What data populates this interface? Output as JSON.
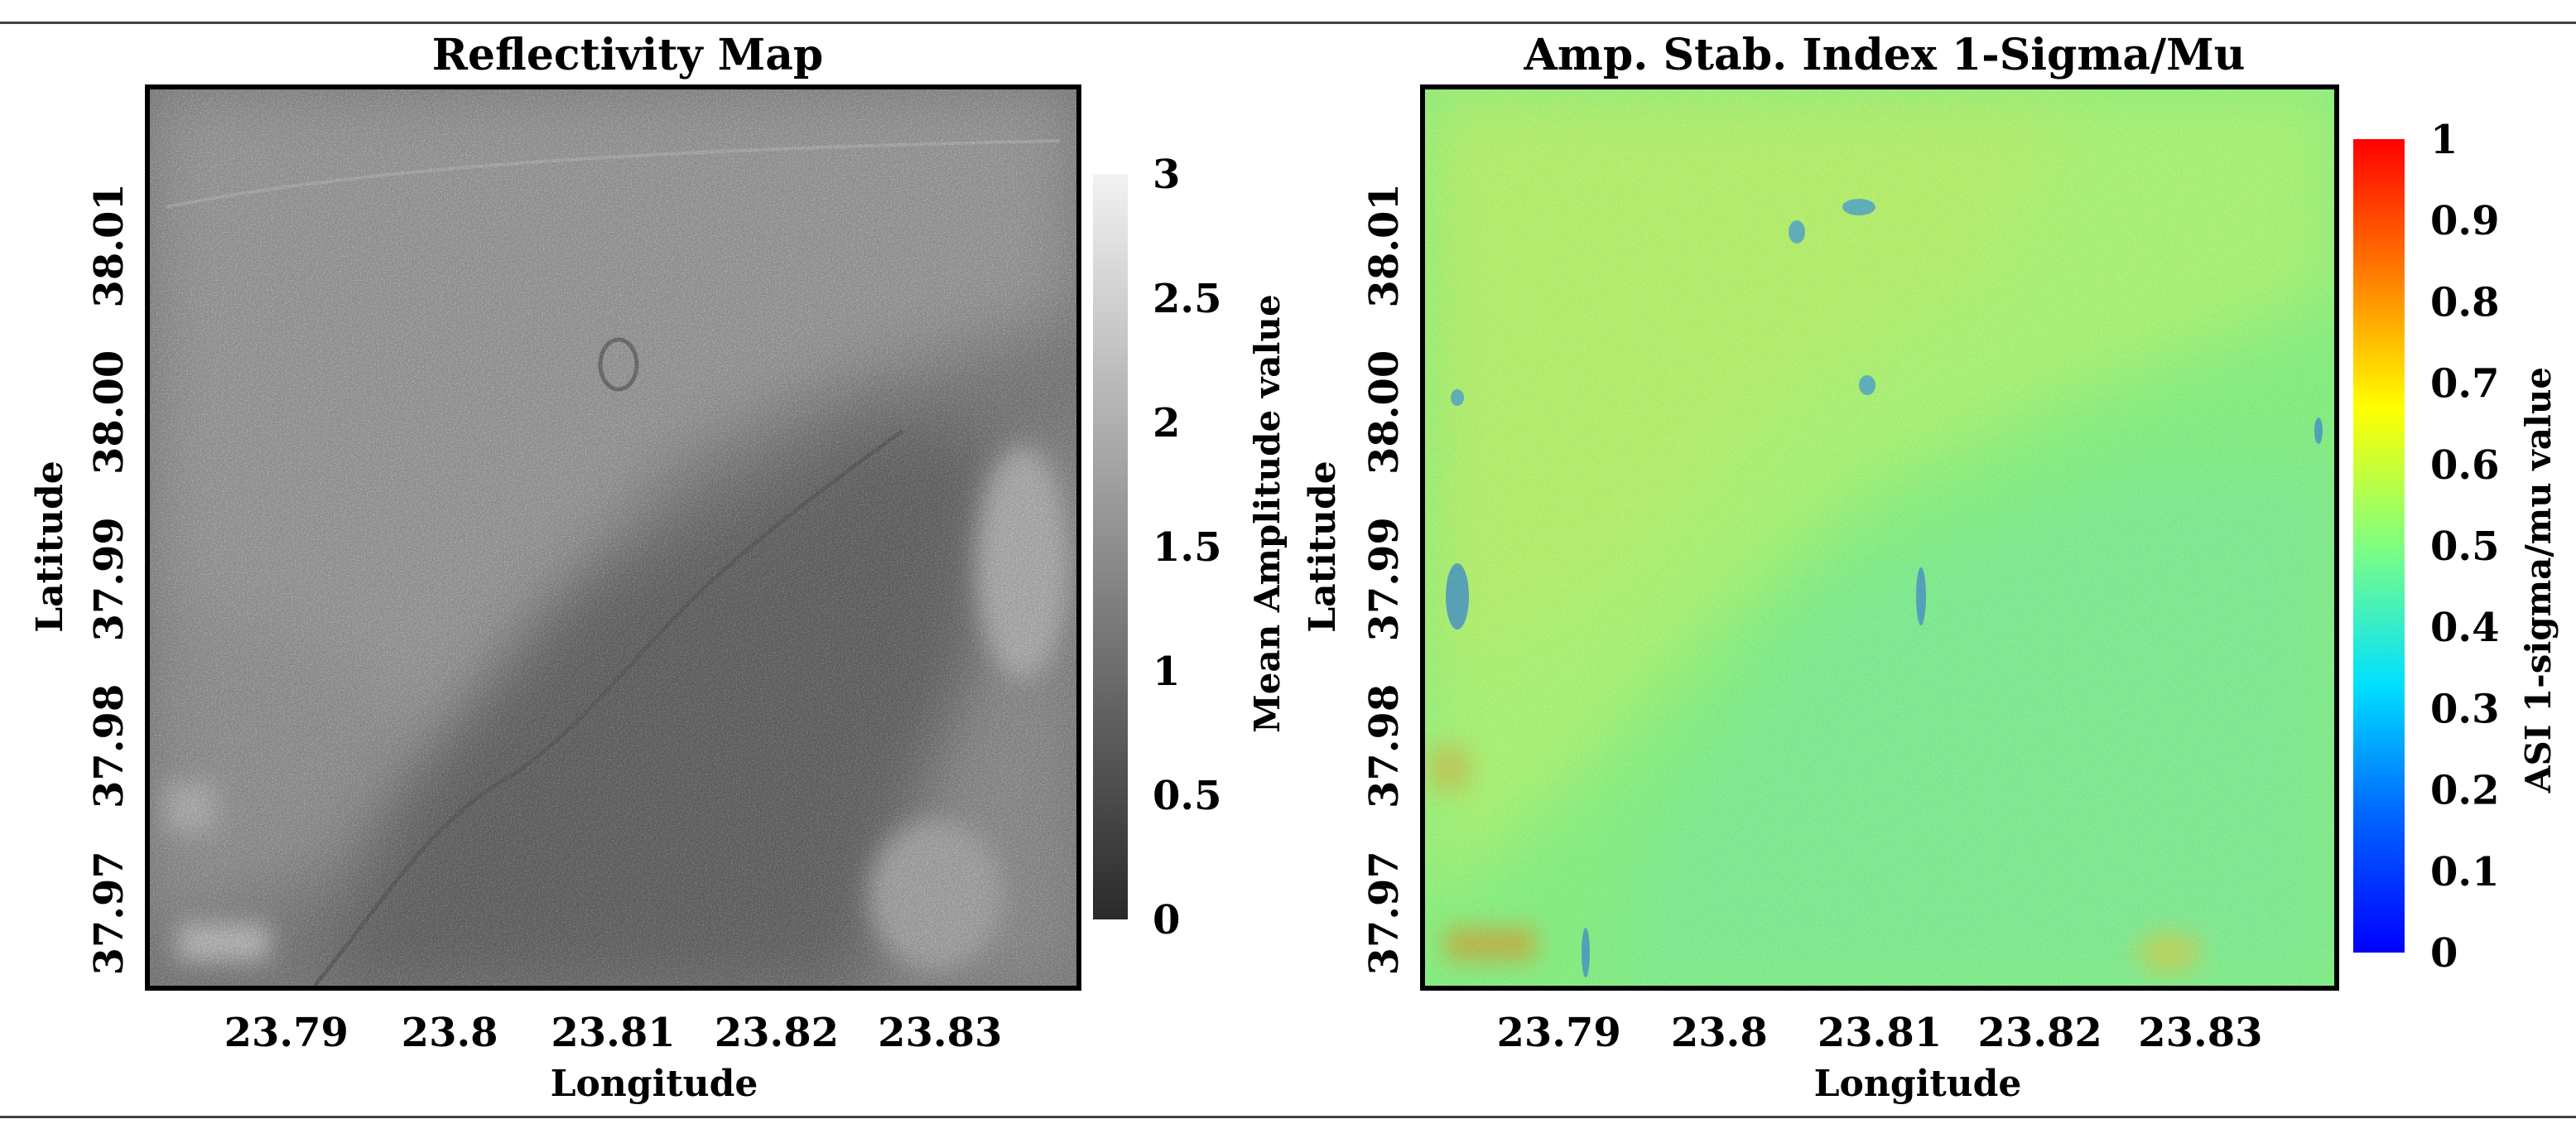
{
  "chart_data": [
    {
      "type": "heatmap",
      "title": "Reflectivity Map",
      "xlabel": "Longitude",
      "ylabel": "Latitude",
      "x_ticks": [
        "23.79",
        "23.8",
        "23.81",
        "23.82",
        "23.83"
      ],
      "x_tick_values": [
        23.79,
        23.8,
        23.81,
        23.82,
        23.83
      ],
      "y_ticks": [
        "38.01",
        "38.00",
        "37.99",
        "37.98",
        "37.97"
      ],
      "y_tick_values": [
        38.01,
        38.0,
        37.99,
        37.98,
        37.97
      ],
      "xlim": [
        23.7815,
        23.8385
      ],
      "ylim": [
        37.9655,
        38.0195
      ],
      "colorbar": {
        "label": "Mean Amplitude value",
        "ticks": [
          "3",
          "2.5",
          "2",
          "1.5",
          "1",
          "0.5",
          "0"
        ],
        "tick_values": [
          3,
          2.5,
          2,
          1.5,
          1,
          0.5,
          0
        ],
        "range": [
          0,
          3
        ],
        "colormap": "gray",
        "colors": [
          "#2a2a2a",
          "#f2f2f2"
        ]
      }
    },
    {
      "type": "heatmap",
      "title": "Amp. Stab. Index 1-Sigma/Mu",
      "xlabel": "Longitude",
      "ylabel": "Latitude",
      "x_ticks": [
        "23.79",
        "23.8",
        "23.81",
        "23.82",
        "23.83"
      ],
      "x_tick_values": [
        23.79,
        23.8,
        23.81,
        23.82,
        23.83
      ],
      "y_ticks": [
        "38.01",
        "38.00",
        "37.99",
        "37.98",
        "37.97"
      ],
      "y_tick_values": [
        38.01,
        38.0,
        37.99,
        37.98,
        37.97
      ],
      "xlim": [
        23.7815,
        23.8385
      ],
      "ylim": [
        37.9655,
        38.0195
      ],
      "colorbar": {
        "label": "ASI 1-sigma/mu value",
        "ticks": [
          "1",
          "0.9",
          "0.8",
          "0.7",
          "0.6",
          "0.5",
          "0.4",
          "0.3",
          "0.2",
          "0.1",
          "0"
        ],
        "tick_values": [
          1,
          0.9,
          0.8,
          0.7,
          0.6,
          0.5,
          0.4,
          0.3,
          0.2,
          0.1,
          0
        ],
        "range": [
          0,
          1
        ],
        "colormap": "jet",
        "colors": [
          "#0000ff",
          "#00a0ff",
          "#00ffff",
          "#80ff80",
          "#ffff00",
          "#ff8000",
          "#ff0000"
        ]
      }
    }
  ]
}
